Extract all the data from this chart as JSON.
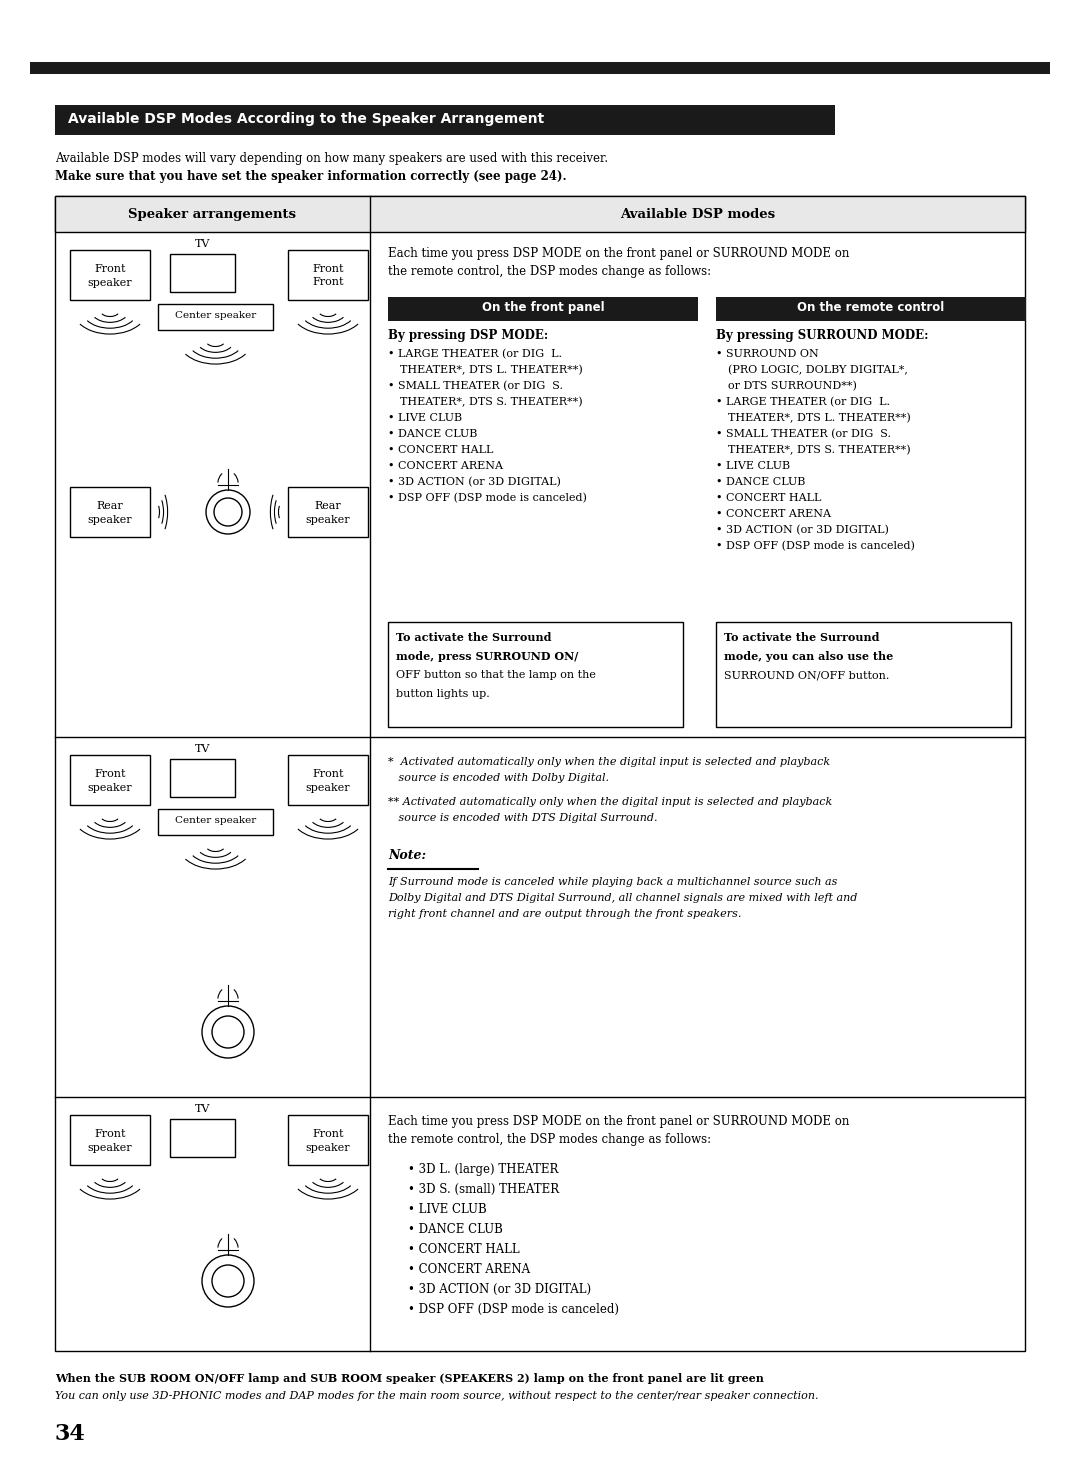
{
  "title_bar_text": "Available DSP Modes According to the Speaker Arrangement",
  "intro_line1": "Available DSP modes will vary depending on how many speakers are used with this receiver.",
  "intro_line2": "Make sure that you have set the speaker information correctly (see page 24).",
  "col1_header": "Speaker arrangements",
  "col2_header": "Available DSP modes",
  "section1_desc_l1": "Each time you press DSP MODE on the front panel or SURROUND MODE on",
  "section1_desc_l2": "the remote control, the DSP modes change as follows:",
  "front_panel_header": "On the front panel",
  "remote_header": "On the remote control",
  "front_panel_title": "By pressing DSP MODE:",
  "front_panel_items": [
    [
      "LARGE THEATER (or DIG  L.",
      "THEATER*, DTS L. THEATER**)"
    ],
    [
      "SMALL THEATER (or DIG  S.",
      "THEATER*, DTS S. THEATER**)"
    ],
    [
      "LIVE CLUB"
    ],
    [
      "DANCE CLUB"
    ],
    [
      "CONCERT HALL"
    ],
    [
      "CONCERT ARENA"
    ],
    [
      "3D ACTION (or 3D DIGITAL)"
    ],
    [
      "DSP OFF (DSP mode is canceled)"
    ]
  ],
  "remote_title": "By pressing SURROUND MODE:",
  "remote_items": [
    [
      "SURROUND ON",
      "(PRO LOGIC, DOLBY DIGITAL*,",
      "or DTS SURROUND**)"
    ],
    [
      "LARGE THEATER (or DIG  L.",
      "THEATER*, DTS L. THEATER**)"
    ],
    [
      "SMALL THEATER (or DIG  S.",
      "THEATER*, DTS S. THEATER**)"
    ],
    [
      "LIVE CLUB"
    ],
    [
      "DANCE CLUB"
    ],
    [
      "CONCERT HALL"
    ],
    [
      "CONCERT ARENA"
    ],
    [
      "3D ACTION (or 3D DIGITAL)"
    ],
    [
      "DSP OFF (DSP mode is canceled)"
    ]
  ],
  "surround_box1_lines": [
    "To activate the Surround",
    "mode, press SURROUND ON/",
    "OFF button so that the lamp on the",
    "button lights up."
  ],
  "surround_box2_lines": [
    "To activate the Surround",
    "mode, you can also use the",
    "SURROUND ON/OFF button."
  ],
  "footnote1_l1": "*  Activated automatically only when the digital input is selected and playback",
  "footnote1_l2": "   source is encoded with Dolby Digital.",
  "footnote2_l1": "** Activated automatically only when the digital input is selected and playback",
  "footnote2_l2": "   source is encoded with DTS Digital Surround.",
  "note_label": "Note:",
  "note_l1": "If Surround mode is canceled while playing back a multichannel source such as",
  "note_l2": "Dolby Digital and DTS Digital Surround, all channel signals are mixed with left and",
  "note_l3": "right front channel and are output through the front speakers.",
  "section3_desc_l1": "Each time you press DSP MODE on the front panel or SURROUND MODE on",
  "section3_desc_l2": "the remote control, the DSP modes change as follows:",
  "section3_items": [
    "3D L. (large) THEATER",
    "3D S. (small) THEATER",
    "LIVE CLUB",
    "DANCE CLUB",
    "CONCERT HALL",
    "CONCERT ARENA",
    "3D ACTION (or 3D DIGITAL)",
    "DSP OFF (DSP mode is canceled)"
  ],
  "footer_bold": "When the SUB ROOM ON/OFF lamp and SUB ROOM speaker (SPEAKERS 2) lamp on the front panel are lit green",
  "footer_italic": "You can only use 3D-PHONIC modes and DAP modes for the main room source, without respect to the center/rear speaker connection.",
  "page_number": "34",
  "bg_color": "#ffffff",
  "dark_bar_color": "#1a1a1a",
  "header_text_color": "#ffffff",
  "light_gray": "#e8e8e8"
}
